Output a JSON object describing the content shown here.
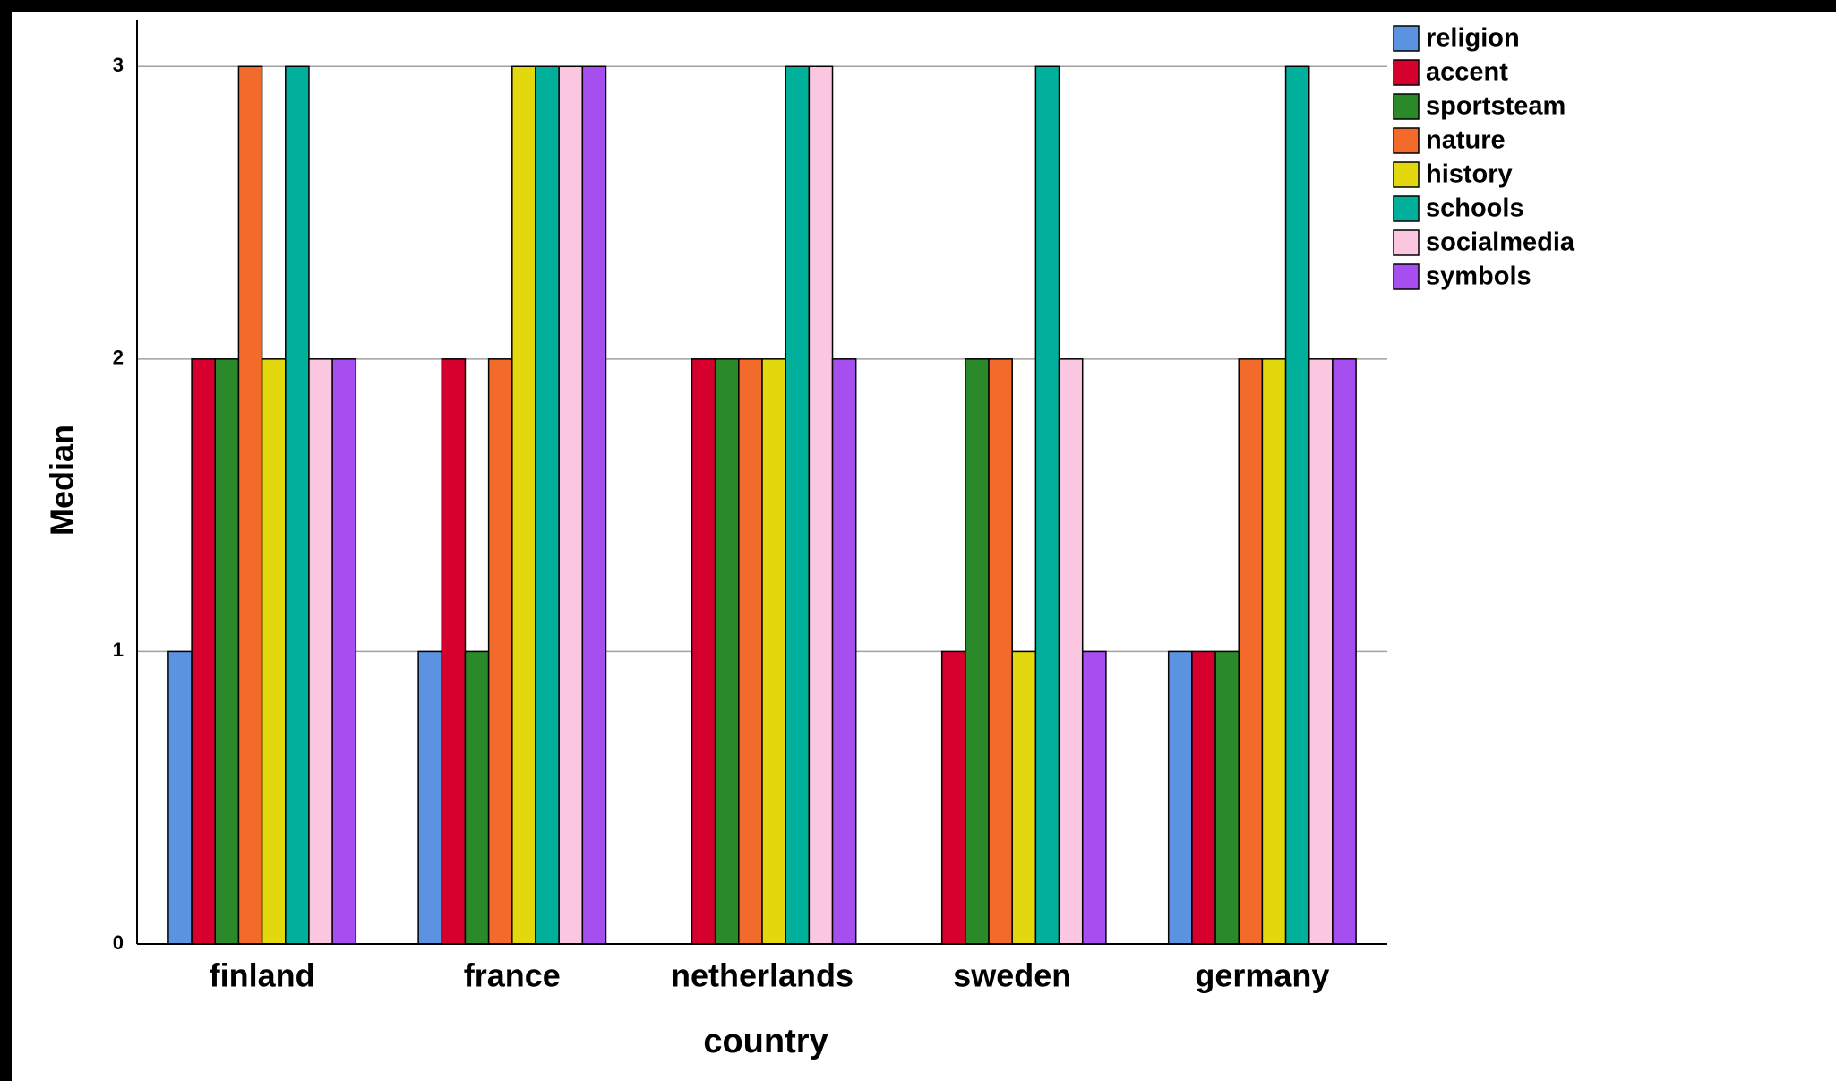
{
  "chart_data": {
    "type": "bar",
    "x_label": "country",
    "y_label": "Median",
    "categories": [
      "finland",
      "france",
      "netherlands",
      "sweden",
      "germany"
    ],
    "series": [
      {
        "name": "religion",
        "color": "#5b93e0",
        "values": [
          1,
          1,
          0,
          0,
          1
        ]
      },
      {
        "name": "accent",
        "color": "#d6002e",
        "values": [
          2,
          2,
          2,
          1,
          1
        ]
      },
      {
        "name": "sportsteam",
        "color": "#2a8a2a",
        "values": [
          2,
          1,
          2,
          2,
          1
        ]
      },
      {
        "name": "nature",
        "color": "#f26b2a",
        "values": [
          3,
          2,
          2,
          2,
          2
        ]
      },
      {
        "name": "history",
        "color": "#e3d80e",
        "values": [
          2,
          3,
          2,
          1,
          2
        ]
      },
      {
        "name": "schools",
        "color": "#00b09b",
        "values": [
          3,
          3,
          3,
          3,
          3
        ]
      },
      {
        "name": "socialmedia",
        "color": "#fbc6e0",
        "values": [
          2,
          3,
          3,
          2,
          2
        ]
      },
      {
        "name": "symbols",
        "color": "#a64ef0",
        "values": [
          2,
          3,
          2,
          1,
          2
        ]
      }
    ],
    "ylim": [
      0,
      3.16
    ],
    "yticks": [
      0,
      1,
      2,
      3
    ],
    "grid": true,
    "legend": "top-right"
  }
}
